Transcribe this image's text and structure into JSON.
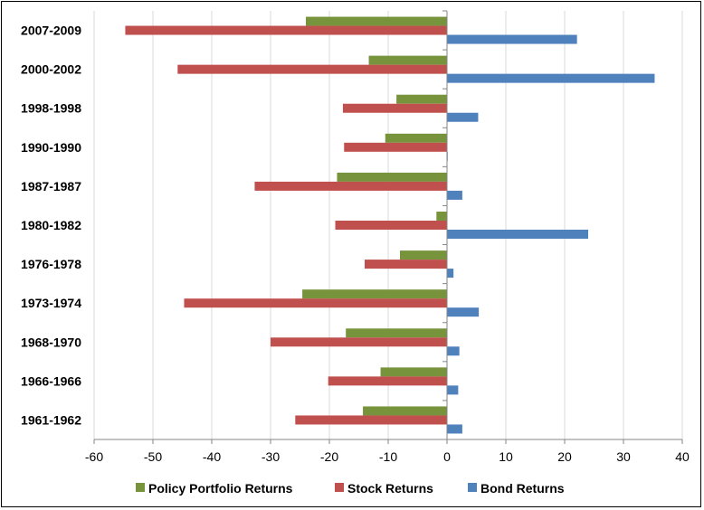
{
  "chart_data": {
    "type": "bar",
    "orientation": "horizontal",
    "categories": [
      "2007-2009",
      "2000-2002",
      "1998-1998",
      "1990-1990",
      "1987-1987",
      "1980-1982",
      "1976-1978",
      "1973-1974",
      "1968-1970",
      "1966-1966",
      "1961-1962"
    ],
    "series": [
      {
        "name": "Policy Portfolio Returns",
        "color": "#77933c",
        "values": [
          -24.0,
          -13.3,
          -8.6,
          -10.5,
          -18.7,
          -1.8,
          -8.0,
          -24.6,
          -17.2,
          -11.3,
          -14.3
        ]
      },
      {
        "name": "Stock Returns",
        "color": "#c0504d",
        "values": [
          -54.7,
          -45.8,
          -17.7,
          -17.5,
          -32.7,
          -19.0,
          -14.0,
          -44.7,
          -30.0,
          -20.2,
          -25.8
        ]
      },
      {
        "name": "Bond Returns",
        "color": "#4f81bd",
        "values": [
          22.1,
          35.3,
          5.3,
          0.0,
          2.6,
          24.0,
          1.1,
          5.4,
          2.1,
          1.9,
          2.6
        ]
      }
    ],
    "xlim": [
      -60,
      40
    ],
    "xticks": [
      -60,
      -50,
      -40,
      -30,
      -20,
      -10,
      0,
      10,
      20,
      30,
      40
    ],
    "grid": "vertical",
    "legend": "bottom",
    "title": "",
    "xlabel": "",
    "ylabel": ""
  }
}
